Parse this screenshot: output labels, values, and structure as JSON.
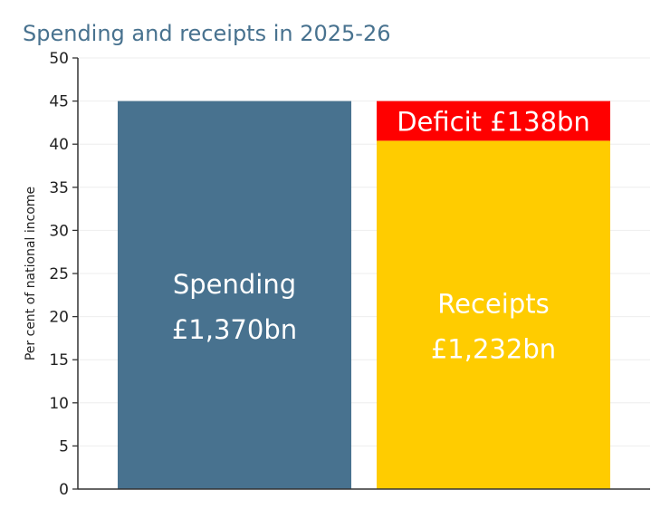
{
  "chart_data": {
    "type": "bar",
    "title": "Spending and receipts in 2025-26",
    "ylabel": "Per cent of national income",
    "xlabel": "",
    "ylim": [
      0,
      50
    ],
    "yticks": [
      "0",
      "5",
      "10",
      "15",
      "20",
      "25",
      "30",
      "35",
      "40",
      "45",
      "50"
    ],
    "grid": true,
    "bars": [
      {
        "name": "Spending",
        "label_line1": "Spending",
        "label_line2": "£1,370bn",
        "segments": [
          {
            "from": 0,
            "to": 45,
            "color": "#48728f"
          }
        ]
      },
      {
        "name": "Receipts",
        "label_line1": "Receipts",
        "label_line2": "£1,232bn",
        "segments": [
          {
            "from": 0,
            "to": 40.4,
            "color": "#ffcc00"
          },
          {
            "from": 40.4,
            "to": 45,
            "color": "#ff0000",
            "label": "Deficit £138bn"
          }
        ]
      }
    ]
  },
  "colors": {
    "title": "#48728f",
    "spending": "#48728f",
    "receipts": "#ffcc00",
    "deficit": "#ff0000"
  }
}
